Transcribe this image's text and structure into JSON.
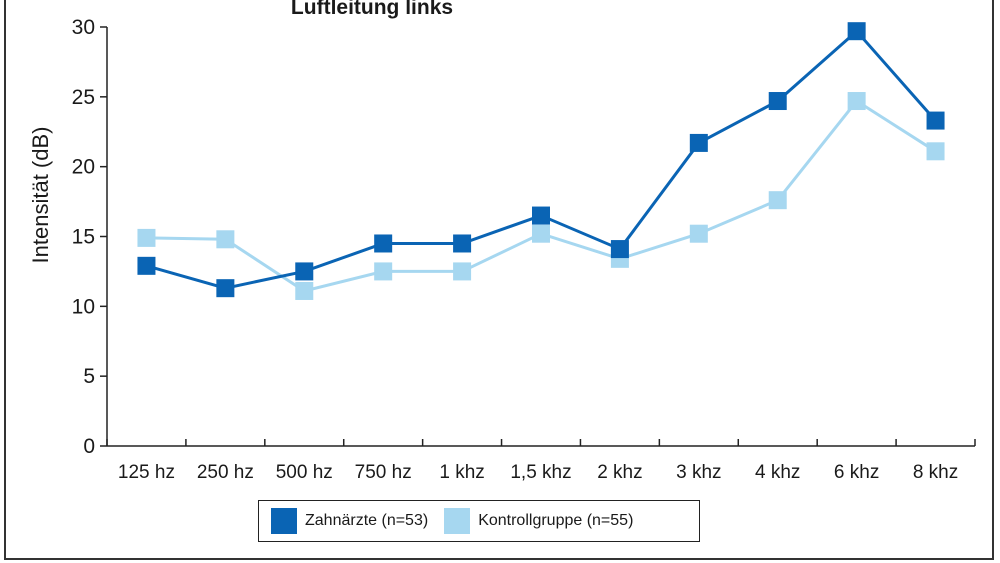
{
  "chart_data": {
    "type": "line",
    "title": "Luftleitung links",
    "xlabel": "",
    "ylabel": "Intensität (dB)",
    "ylim": [
      0,
      30
    ],
    "yticks": [
      0,
      5,
      10,
      15,
      20,
      25,
      30
    ],
    "categories": [
      "125 hz",
      "250 hz",
      "500 hz",
      "750 hz",
      "1 khz",
      "1,5 khz",
      "2 khz",
      "3 khz",
      "4 khz",
      "6 khz",
      "8 khz"
    ],
    "series": [
      {
        "name": "Zahnärzte (n=53)",
        "color": "#0a64b4",
        "values": [
          12.9,
          11.3,
          12.5,
          14.5,
          14.5,
          16.5,
          14.1,
          21.7,
          24.7,
          29.7,
          23.3
        ]
      },
      {
        "name": "Kontrollgruppe (n=55)",
        "color": "#a6d7f0",
        "values": [
          14.9,
          14.8,
          11.1,
          12.5,
          12.5,
          15.2,
          13.4,
          15.2,
          17.6,
          24.7,
          21.1
        ]
      }
    ],
    "grid": false,
    "legend_position": "bottom"
  }
}
